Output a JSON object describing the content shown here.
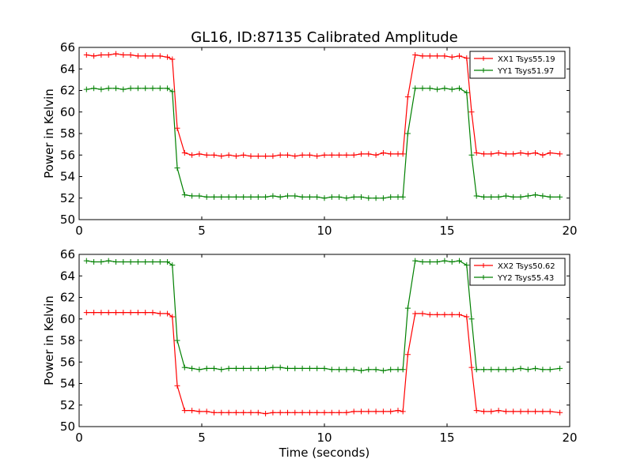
{
  "title": "GL16, ID:87135 Calibrated Amplitude",
  "xlabel": "Time (seconds)",
  "ylabel": "Power in Kelvin",
  "chart_data": [
    {
      "type": "line",
      "xlim": [
        0,
        20
      ],
      "ylim": [
        50,
        66
      ],
      "xticks": [
        0,
        5,
        10,
        15,
        20
      ],
      "yticks": [
        50,
        52,
        54,
        56,
        58,
        60,
        62,
        64,
        66
      ],
      "legend_position": "top-right",
      "series": [
        {
          "name": "XX1 Tsys55.19",
          "color": "#ff0000",
          "x": [
            0.3,
            0.6,
            0.9,
            1.2,
            1.5,
            1.8,
            2.1,
            2.4,
            2.7,
            3.0,
            3.3,
            3.6,
            3.8,
            4.0,
            4.3,
            4.6,
            4.9,
            5.2,
            5.5,
            5.8,
            6.1,
            6.4,
            6.7,
            7.0,
            7.3,
            7.6,
            7.9,
            8.2,
            8.5,
            8.8,
            9.1,
            9.4,
            9.7,
            10.0,
            10.3,
            10.6,
            10.9,
            11.2,
            11.5,
            11.8,
            12.1,
            12.4,
            12.7,
            13.0,
            13.2,
            13.4,
            13.7,
            14.0,
            14.3,
            14.6,
            14.9,
            15.2,
            15.5,
            15.8,
            16.0,
            16.2,
            16.5,
            16.8,
            17.1,
            17.4,
            17.7,
            18.0,
            18.3,
            18.6,
            18.9,
            19.2,
            19.6
          ],
          "y": [
            65.3,
            65.2,
            65.3,
            65.3,
            65.4,
            65.3,
            65.3,
            65.2,
            65.2,
            65.2,
            65.2,
            65.1,
            64.9,
            58.5,
            56.2,
            56.0,
            56.1,
            56.0,
            56.0,
            55.9,
            56.0,
            55.9,
            56.0,
            55.9,
            55.9,
            55.9,
            55.9,
            56.0,
            56.0,
            55.9,
            56.0,
            56.0,
            55.9,
            56.0,
            56.0,
            56.0,
            56.0,
            56.0,
            56.1,
            56.1,
            56.0,
            56.2,
            56.1,
            56.1,
            56.1,
            61.4,
            65.3,
            65.2,
            65.2,
            65.2,
            65.2,
            65.1,
            65.2,
            65.0,
            60.0,
            56.2,
            56.1,
            56.1,
            56.2,
            56.1,
            56.1,
            56.2,
            56.1,
            56.2,
            56.0,
            56.2,
            56.1
          ]
        },
        {
          "name": "YY1 Tsys51.97",
          "color": "#008000",
          "x": [
            0.3,
            0.6,
            0.9,
            1.2,
            1.5,
            1.8,
            2.1,
            2.4,
            2.7,
            3.0,
            3.3,
            3.6,
            3.8,
            4.0,
            4.3,
            4.6,
            4.9,
            5.2,
            5.5,
            5.8,
            6.1,
            6.4,
            6.7,
            7.0,
            7.3,
            7.6,
            7.9,
            8.2,
            8.5,
            8.8,
            9.1,
            9.4,
            9.7,
            10.0,
            10.3,
            10.6,
            10.9,
            11.2,
            11.5,
            11.8,
            12.1,
            12.4,
            12.7,
            13.0,
            13.2,
            13.4,
            13.7,
            14.0,
            14.3,
            14.6,
            14.9,
            15.2,
            15.5,
            15.8,
            16.0,
            16.2,
            16.5,
            16.8,
            17.1,
            17.4,
            17.7,
            18.0,
            18.3,
            18.6,
            18.9,
            19.2,
            19.6
          ],
          "y": [
            62.1,
            62.2,
            62.1,
            62.2,
            62.2,
            62.1,
            62.2,
            62.2,
            62.2,
            62.2,
            62.2,
            62.2,
            61.9,
            54.8,
            52.3,
            52.2,
            52.2,
            52.1,
            52.1,
            52.1,
            52.1,
            52.1,
            52.1,
            52.1,
            52.1,
            52.1,
            52.2,
            52.1,
            52.2,
            52.2,
            52.1,
            52.1,
            52.1,
            52.0,
            52.1,
            52.1,
            52.0,
            52.1,
            52.1,
            52.0,
            52.0,
            52.0,
            52.1,
            52.1,
            52.1,
            58.0,
            62.2,
            62.2,
            62.2,
            62.1,
            62.2,
            62.1,
            62.2,
            61.8,
            56.0,
            52.2,
            52.1,
            52.1,
            52.1,
            52.2,
            52.1,
            52.1,
            52.2,
            52.3,
            52.2,
            52.1,
            52.1
          ]
        }
      ]
    },
    {
      "type": "line",
      "xlim": [
        0,
        20
      ],
      "ylim": [
        50,
        66
      ],
      "xticks": [
        0,
        5,
        10,
        15,
        20
      ],
      "yticks": [
        50,
        52,
        54,
        56,
        58,
        60,
        62,
        64,
        66
      ],
      "legend_position": "top-right",
      "series": [
        {
          "name": "XX2 Tsys50.62",
          "color": "#ff0000",
          "x": [
            0.3,
            0.6,
            0.9,
            1.2,
            1.5,
            1.8,
            2.1,
            2.4,
            2.7,
            3.0,
            3.3,
            3.6,
            3.8,
            4.0,
            4.3,
            4.6,
            4.9,
            5.2,
            5.5,
            5.8,
            6.1,
            6.4,
            6.7,
            7.0,
            7.3,
            7.6,
            7.9,
            8.2,
            8.5,
            8.8,
            9.1,
            9.4,
            9.7,
            10.0,
            10.3,
            10.6,
            10.9,
            11.2,
            11.5,
            11.8,
            12.1,
            12.4,
            12.7,
            13.0,
            13.2,
            13.4,
            13.7,
            14.0,
            14.3,
            14.6,
            14.9,
            15.2,
            15.5,
            15.8,
            16.0,
            16.2,
            16.5,
            16.8,
            17.1,
            17.4,
            17.7,
            18.0,
            18.3,
            18.6,
            18.9,
            19.2,
            19.6
          ],
          "y": [
            60.6,
            60.6,
            60.6,
            60.6,
            60.6,
            60.6,
            60.6,
            60.6,
            60.6,
            60.6,
            60.5,
            60.5,
            60.2,
            53.8,
            51.5,
            51.5,
            51.4,
            51.4,
            51.3,
            51.3,
            51.3,
            51.3,
            51.3,
            51.3,
            51.3,
            51.2,
            51.3,
            51.3,
            51.3,
            51.3,
            51.3,
            51.3,
            51.3,
            51.3,
            51.3,
            51.3,
            51.3,
            51.4,
            51.4,
            51.4,
            51.4,
            51.4,
            51.4,
            51.5,
            51.4,
            56.7,
            60.5,
            60.5,
            60.4,
            60.4,
            60.4,
            60.4,
            60.4,
            60.2,
            55.5,
            51.5,
            51.4,
            51.4,
            51.5,
            51.4,
            51.4,
            51.4,
            51.4,
            51.4,
            51.4,
            51.4,
            51.3
          ]
        },
        {
          "name": "YY2 Tsys55.43",
          "color": "#008000",
          "x": [
            0.3,
            0.6,
            0.9,
            1.2,
            1.5,
            1.8,
            2.1,
            2.4,
            2.7,
            3.0,
            3.3,
            3.6,
            3.8,
            4.0,
            4.3,
            4.6,
            4.9,
            5.2,
            5.5,
            5.8,
            6.1,
            6.4,
            6.7,
            7.0,
            7.3,
            7.6,
            7.9,
            8.2,
            8.5,
            8.8,
            9.1,
            9.4,
            9.7,
            10.0,
            10.3,
            10.6,
            10.9,
            11.2,
            11.5,
            11.8,
            12.1,
            12.4,
            12.7,
            13.0,
            13.2,
            13.4,
            13.7,
            14.0,
            14.3,
            14.6,
            14.9,
            15.2,
            15.5,
            15.8,
            16.0,
            16.2,
            16.5,
            16.8,
            17.1,
            17.4,
            17.7,
            18.0,
            18.3,
            18.6,
            18.9,
            19.2,
            19.6
          ],
          "y": [
            65.4,
            65.3,
            65.3,
            65.4,
            65.3,
            65.3,
            65.3,
            65.3,
            65.3,
            65.3,
            65.3,
            65.3,
            65.0,
            58.0,
            55.5,
            55.4,
            55.3,
            55.4,
            55.4,
            55.3,
            55.4,
            55.4,
            55.4,
            55.4,
            55.4,
            55.4,
            55.5,
            55.5,
            55.4,
            55.4,
            55.4,
            55.4,
            55.4,
            55.4,
            55.3,
            55.3,
            55.3,
            55.3,
            55.2,
            55.3,
            55.3,
            55.2,
            55.3,
            55.3,
            55.3,
            61.0,
            65.4,
            65.3,
            65.3,
            65.3,
            65.4,
            65.3,
            65.4,
            65.0,
            60.0,
            55.3,
            55.3,
            55.3,
            55.3,
            55.3,
            55.3,
            55.4,
            55.3,
            55.4,
            55.3,
            55.3,
            55.4
          ]
        }
      ]
    }
  ]
}
